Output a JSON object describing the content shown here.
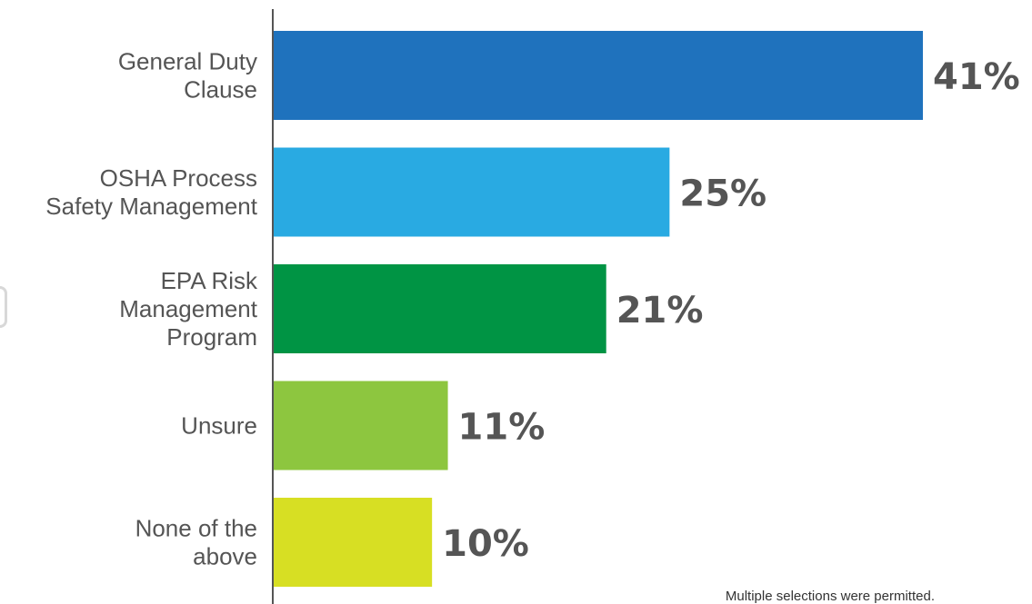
{
  "chart_data": {
    "type": "bar",
    "orientation": "horizontal",
    "categories": [
      [
        "General Duty",
        "Clause"
      ],
      [
        "OSHA Process",
        "Safety Management"
      ],
      [
        "EPA Risk",
        "Management",
        "Program"
      ],
      [
        "Unsure"
      ],
      [
        "None of the",
        "above"
      ]
    ],
    "values": [
      41,
      25,
      21,
      11,
      10
    ],
    "value_labels": [
      "41%",
      "25%",
      "21%",
      "11%",
      "10%"
    ],
    "colors": [
      "#1f72bd",
      "#29aae2",
      "#009444",
      "#8dc63f",
      "#d7df23"
    ],
    "xlim": [
      0,
      41
    ],
    "grid": false,
    "legend": "none"
  },
  "footnote": "Multiple selections were permitted."
}
